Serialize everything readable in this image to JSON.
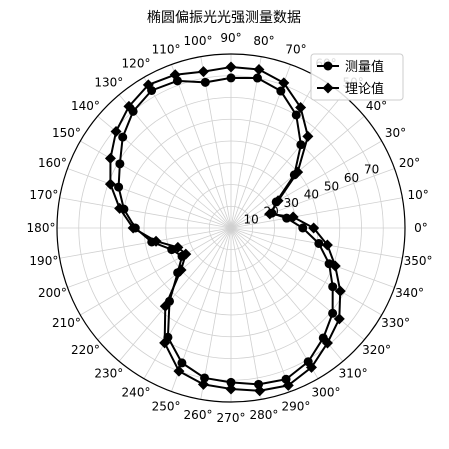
{
  "chart_data": {
    "type": "line",
    "projection": "polar",
    "title": "椭圆偏振光光强测量数据",
    "angle_unit": "degree",
    "angle_ticks": [
      0,
      10,
      20,
      30,
      40,
      50,
      60,
      70,
      80,
      90,
      100,
      110,
      120,
      130,
      140,
      150,
      160,
      170,
      180,
      190,
      200,
      210,
      220,
      230,
      240,
      250,
      260,
      270,
      280,
      290,
      300,
      310,
      320,
      330,
      340,
      350
    ],
    "angle_tick_labels": [
      "0°",
      "10°",
      "20°",
      "30°",
      "40°",
      "50°",
      "60°",
      "70°",
      "80°",
      "90°",
      "100°",
      "110°",
      "120°",
      "130°",
      "140°",
      "150°",
      "160°",
      "170°",
      "180°",
      "190°",
      "200°",
      "210°",
      "220°",
      "230°",
      "240°",
      "250°",
      "260°",
      "270°",
      "280°",
      "290°",
      "300°",
      "310°",
      "320°",
      "330°",
      "340°",
      "350°"
    ],
    "radial_ticks": [
      10,
      20,
      30,
      40,
      50,
      60,
      70
    ],
    "radial_tick_labels": [
      "10",
      "20",
      "30",
      "40",
      "50",
      "60",
      "70"
    ],
    "radial_label_angle": 22.5,
    "rlim": [
      0,
      80
    ],
    "grid": true,
    "legend_position": "top-right",
    "angles": [
      0,
      10,
      20,
      30,
      40,
      50,
      60,
      70,
      80,
      90,
      100,
      110,
      120,
      130,
      140,
      150,
      160,
      170,
      180,
      190,
      200,
      210,
      220,
      230,
      240,
      250,
      260,
      270,
      280,
      290,
      300,
      310,
      320,
      330,
      340,
      350
    ],
    "series": [
      {
        "name": "测量值",
        "marker": "circle",
        "color": "#000000",
        "values": [
          33,
          26,
          20,
          24,
          38,
          50,
          60,
          67,
          70,
          69,
          68,
          72,
          73,
          70,
          65,
          59,
          55,
          50,
          44,
          37,
          29,
          26,
          32,
          44,
          58,
          66,
          70,
          71,
          73,
          74,
          71,
          66,
          61,
          54,
          48,
          41
        ]
      },
      {
        "name": "理论值",
        "marker": "diamond",
        "color": "#000000",
        "values": [
          38,
          29,
          19,
          25,
          40,
          55,
          64,
          71,
          74,
          74,
          73,
          75,
          76,
          73,
          69,
          64,
          59,
          52,
          45,
          35,
          26,
          24,
          30,
          47,
          61,
          70,
          73,
          74,
          76,
          77,
          74,
          69,
          65,
          58,
          51,
          45
        ]
      }
    ]
  }
}
